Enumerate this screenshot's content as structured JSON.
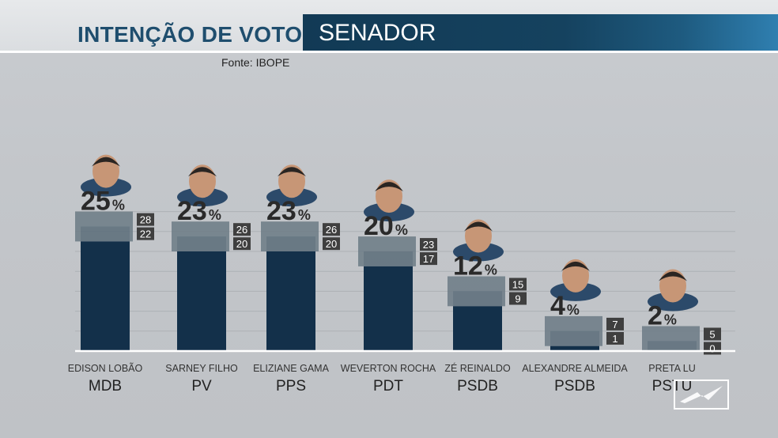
{
  "header": {
    "title": "INTENÇÃO DE VOTO",
    "subtitle": "SENADOR",
    "source": "Fonte: IBOPE"
  },
  "colors": {
    "bar": "#13304a",
    "range_box": "#6b7a85",
    "margin_box": "#3f3f3f",
    "title": "#1f4e6e",
    "banner": "#15425f"
  },
  "chart_data": {
    "type": "bar",
    "unit": "%",
    "categories": [
      "EDISON LOBÃO",
      "SARNEY FILHO",
      "ELIZIANE GAMA",
      "WEVERTON ROCHA",
      "ZÉ REINALDO",
      "ALEXANDRE ALMEIDA",
      "PRETA LU"
    ],
    "parties": [
      "MDB",
      "PV",
      "PPS",
      "PDT",
      "PSDB",
      "PSDB",
      "PSTU"
    ],
    "series": [
      {
        "values": [
          25,
          23,
          23,
          20,
          12,
          4,
          2
        ]
      }
    ],
    "upper": [
      28,
      26,
      26,
      23,
      15,
      7,
      5
    ],
    "lower": [
      22,
      20,
      20,
      17,
      9,
      1,
      0
    ],
    "grid": true,
    "legend": "none"
  },
  "icons": [
    "candidate-photo",
    "tv-logo-icon"
  ]
}
